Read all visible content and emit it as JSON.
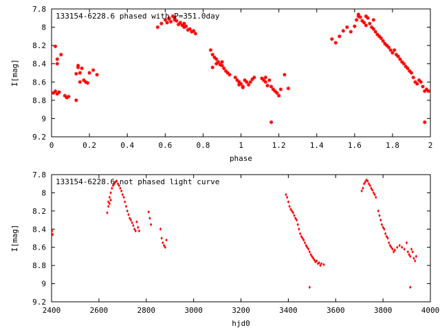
{
  "chart_data": [
    {
      "type": "scatter",
      "title": "133154-6228.6 phased with P=351.0day",
      "xlabel": "phase",
      "ylabel": "I[mag]",
      "xlim": [
        0,
        2
      ],
      "ylim": [
        9.2,
        7.8
      ],
      "y_inverted": true,
      "x_ticks": [
        "0",
        "0.2",
        "0.4",
        "0.6",
        "0.8",
        "1",
        "1.2",
        "1.4",
        "1.6",
        "1.8",
        "2"
      ],
      "y_ticks": [
        "7.8",
        "8",
        "8.2",
        "8.4",
        "8.6",
        "8.8",
        "9",
        "9.2"
      ],
      "marker": "star",
      "color": "#ff0000",
      "grid": false,
      "series": [
        {
          "x": [
            0.01,
            0.02,
            0.03,
            0.04,
            0.02,
            0.03,
            0.05,
            0.07,
            0.08,
            0.09,
            0.03,
            0.13,
            0.14,
            0.15,
            0.16,
            0.17,
            0.18,
            0.19,
            0.2,
            0.22,
            0.24,
            0.13,
            0.14,
            0.15,
            0.56,
            0.58,
            0.6,
            0.61,
            0.62,
            0.63,
            0.64,
            0.65,
            0.66,
            0.67,
            0.68,
            0.69,
            0.7,
            0.71,
            0.72,
            0.73,
            0.74,
            0.75,
            0.76,
            0.62,
            0.65,
            0.7,
            0.84,
            0.85,
            0.86,
            0.87,
            0.88,
            0.89,
            0.9,
            0.91,
            0.92,
            0.93,
            0.94,
            0.85,
            0.87,
            0.9,
            0.97,
            0.98,
            0.99,
            1.0,
            1.01,
            1.02,
            1.03,
            1.04,
            1.05,
            1.06,
            1.07,
            0.99,
            1.01,
            1.11,
            1.12,
            1.13,
            1.14,
            1.15,
            1.16,
            1.17,
            1.18,
            1.19,
            1.2,
            1.21,
            1.23,
            1.25,
            1.16,
            1.13,
            1.48,
            1.5,
            1.52,
            1.54,
            1.56,
            1.58,
            1.6,
            1.61,
            1.62,
            1.63,
            1.64,
            1.65,
            1.66,
            1.67,
            1.68,
            1.69,
            1.7,
            1.71,
            1.72,
            1.73,
            1.74,
            1.75,
            1.76,
            1.77,
            1.78,
            1.79,
            1.8,
            1.81,
            1.82,
            1.83,
            1.84,
            1.85,
            1.86,
            1.87,
            1.88,
            1.89,
            1.9,
            1.91,
            1.92,
            1.93,
            1.94,
            1.95,
            1.96,
            1.97,
            1.98,
            1.99,
            1.97,
            1.62,
            1.66,
            1.7
          ],
          "y": [
            8.72,
            8.7,
            8.73,
            8.71,
            8.21,
            8.35,
            8.3,
            8.75,
            8.77,
            8.76,
            8.4,
            8.8,
            8.42,
            8.5,
            8.45,
            8.58,
            8.6,
            8.61,
            8.5,
            8.47,
            8.52,
            8.51,
            8.44,
            8.6,
            8.0,
            7.96,
            7.92,
            7.95,
            7.9,
            7.94,
            7.88,
            7.9,
            7.93,
            7.97,
            7.95,
            7.98,
            8.0,
            7.99,
            8.03,
            8.02,
            8.05,
            8.04,
            8.07,
            7.91,
            7.92,
            7.96,
            8.25,
            8.3,
            8.33,
            8.35,
            8.38,
            8.41,
            8.42,
            8.45,
            8.48,
            8.5,
            8.52,
            8.44,
            8.4,
            8.38,
            8.55,
            8.58,
            8.6,
            8.62,
            8.65,
            8.58,
            8.6,
            8.63,
            8.6,
            8.57,
            8.55,
            8.63,
            8.66,
            8.56,
            8.58,
            8.6,
            8.64,
            8.58,
            8.65,
            8.68,
            8.7,
            8.72,
            8.75,
            8.68,
            8.52,
            8.67,
            9.04,
            8.55,
            8.13,
            8.17,
            8.1,
            8.04,
            8.0,
            8.05,
            7.99,
            7.92,
            7.88,
            7.89,
            7.93,
            7.95,
            7.98,
            7.9,
            7.96,
            8.0,
            8.02,
            8.05,
            8.08,
            8.1,
            8.12,
            8.15,
            8.18,
            8.2,
            8.22,
            8.25,
            8.28,
            8.25,
            8.3,
            8.32,
            8.35,
            8.38,
            8.4,
            8.43,
            8.45,
            8.48,
            8.5,
            8.55,
            8.6,
            8.62,
            8.58,
            8.6,
            8.65,
            8.7,
            8.68,
            8.7,
            9.04,
            7.86,
            7.88,
            7.92
          ]
        }
      ]
    },
    {
      "type": "scatter",
      "title": "133154-6228.6 not phased light curve",
      "xlabel": "hjd0",
      "ylabel": "I[mag]",
      "xlim": [
        2400,
        4000
      ],
      "ylim": [
        9.2,
        7.8
      ],
      "y_inverted": true,
      "x_ticks": [
        "2400",
        "2600",
        "2800",
        "3000",
        "3200",
        "3400",
        "3600",
        "3800",
        "4000"
      ],
      "y_ticks": [
        "7.8",
        "8",
        "8.2",
        "8.4",
        "8.6",
        "8.8",
        "9",
        "9.2"
      ],
      "marker": "diamond",
      "color": "#ff0000",
      "grid": false,
      "series": [
        {
          "x": [
            2400,
            2402,
            2405,
            2635,
            2640,
            2645,
            2650,
            2655,
            2660,
            2665,
            2670,
            2675,
            2680,
            2685,
            2690,
            2695,
            2700,
            2705,
            2710,
            2715,
            2720,
            2725,
            2730,
            2735,
            2740,
            2745,
            2750,
            2755,
            2760,
            2765,
            2770,
            2640,
            2645,
            2650,
            2810,
            2815,
            2820,
            2860,
            2865,
            2870,
            2875,
            2880,
            2885,
            3390,
            3395,
            3400,
            3405,
            3410,
            3415,
            3420,
            3425,
            3430,
            3435,
            3440,
            3445,
            3450,
            3455,
            3460,
            3465,
            3470,
            3475,
            3480,
            3485,
            3490,
            3495,
            3500,
            3505,
            3510,
            3515,
            3520,
            3525,
            3530,
            3535,
            3540,
            3550,
            3490,
            3710,
            3715,
            3720,
            3725,
            3730,
            3735,
            3740,
            3745,
            3750,
            3755,
            3760,
            3765,
            3770,
            3780,
            3785,
            3790,
            3795,
            3800,
            3805,
            3810,
            3815,
            3820,
            3825,
            3830,
            3835,
            3840,
            3845,
            3850,
            3860,
            3870,
            3880,
            3890,
            3900,
            3905,
            3910,
            3915,
            3920,
            3925,
            3930,
            3935,
            3940,
            3915
          ],
          "y": [
            8.45,
            8.42,
            8.46,
            8.22,
            8.1,
            8.05,
            8.0,
            7.95,
            7.92,
            7.9,
            7.88,
            7.87,
            7.9,
            7.92,
            7.95,
            7.98,
            8.02,
            8.05,
            8.1,
            8.15,
            8.2,
            8.24,
            8.28,
            8.3,
            8.33,
            8.36,
            8.4,
            8.42,
            8.32,
            8.38,
            8.42,
            8.15,
            8.12,
            8.08,
            8.21,
            8.28,
            8.35,
            8.4,
            8.5,
            8.55,
            8.58,
            8.6,
            8.52,
            8.02,
            8.05,
            8.1,
            8.15,
            8.18,
            8.2,
            8.22,
            8.25,
            8.28,
            8.3,
            8.35,
            8.4,
            8.45,
            8.48,
            8.5,
            8.52,
            8.55,
            8.58,
            8.6,
            8.62,
            8.65,
            8.68,
            8.7,
            8.72,
            8.74,
            8.76,
            8.75,
            8.78,
            8.77,
            8.8,
            8.78,
            8.79,
            9.04,
            7.98,
            7.95,
            7.9,
            7.88,
            7.86,
            7.87,
            7.9,
            7.92,
            7.95,
            7.97,
            8.0,
            8.02,
            8.05,
            8.2,
            8.25,
            8.3,
            8.35,
            8.38,
            8.4,
            8.45,
            8.48,
            8.5,
            8.55,
            8.58,
            8.6,
            8.62,
            8.65,
            8.63,
            8.6,
            8.58,
            8.6,
            8.62,
            8.55,
            8.65,
            8.68,
            8.7,
            8.62,
            8.65,
            8.72,
            8.75,
            8.7,
            9.04
          ]
        }
      ]
    }
  ]
}
